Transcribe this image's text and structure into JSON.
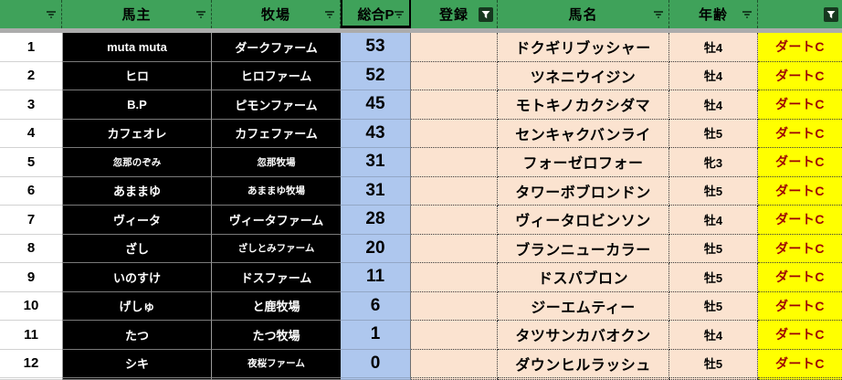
{
  "table": {
    "columns": [
      {
        "key": "rank",
        "label": "",
        "filter": "dropdown"
      },
      {
        "key": "owner",
        "label": "馬主",
        "filter": "dropdown"
      },
      {
        "key": "farm",
        "label": "牧場",
        "filter": "dropdown"
      },
      {
        "key": "points",
        "label": "総合P",
        "filter": "dropdown"
      },
      {
        "key": "entry",
        "label": "登録",
        "filter": "funnel"
      },
      {
        "key": "horse",
        "label": "馬名",
        "filter": "dropdown"
      },
      {
        "key": "age",
        "label": "年齢",
        "filter": "dropdown"
      },
      {
        "key": "surface",
        "label": "",
        "filter": "funnel"
      }
    ],
    "rows": [
      {
        "rank": "1",
        "owner": "muta muta",
        "farm": "ダークファーム",
        "points": "53",
        "entry": "",
        "horse": "ドクギリブッシャー",
        "age": "牡4",
        "surface": "ダートC",
        "owner_small": false,
        "farm_small": false
      },
      {
        "rank": "2",
        "owner": "ヒロ",
        "farm": "ヒロファーム",
        "points": "52",
        "entry": "",
        "horse": "ツネニウイジン",
        "age": "牡4",
        "surface": "ダートC",
        "owner_small": false,
        "farm_small": false
      },
      {
        "rank": "3",
        "owner": "B.P",
        "farm": "ピモンファーム",
        "points": "45",
        "entry": "",
        "horse": "モトキノカクシダマ",
        "age": "牡4",
        "surface": "ダートC",
        "owner_small": false,
        "farm_small": false
      },
      {
        "rank": "4",
        "owner": "カフェオレ",
        "farm": "カフェファーム",
        "points": "43",
        "entry": "",
        "horse": "センキャクバンライ",
        "age": "牡5",
        "surface": "ダートC",
        "owner_small": false,
        "farm_small": false
      },
      {
        "rank": "5",
        "owner": "忽那のぞみ",
        "farm": "忽那牧場",
        "points": "31",
        "entry": "",
        "horse": "フォーゼロフォー",
        "age": "牝3",
        "surface": "ダートC",
        "owner_small": true,
        "farm_small": true
      },
      {
        "rank": "6",
        "owner": "あままゆ",
        "farm": "あままゆ牧場",
        "points": "31",
        "entry": "",
        "horse": "タワーボブロンドン",
        "age": "牡5",
        "surface": "ダートC",
        "owner_small": false,
        "farm_small": true
      },
      {
        "rank": "7",
        "owner": "ヴィータ",
        "farm": "ヴィータファーム",
        "points": "28",
        "entry": "",
        "horse": "ヴィータロビンソン",
        "age": "牡4",
        "surface": "ダートC",
        "owner_small": false,
        "farm_small": false
      },
      {
        "rank": "8",
        "owner": "ざし",
        "farm": "ざしとみファーム",
        "points": "20",
        "entry": "",
        "horse": "ブランニューカラー",
        "age": "牡5",
        "surface": "ダートC",
        "owner_small": false,
        "farm_small": true
      },
      {
        "rank": "9",
        "owner": "いのすけ",
        "farm": "ドスファーム",
        "points": "11",
        "entry": "",
        "horse": "ドスパブロン",
        "age": "牡5",
        "surface": "ダートC",
        "owner_small": false,
        "farm_small": false
      },
      {
        "rank": "10",
        "owner": "げしゅ",
        "farm": "と鹿牧場",
        "points": "6",
        "entry": "",
        "horse": "ジーエムティー",
        "age": "牡5",
        "surface": "ダートC",
        "owner_small": false,
        "farm_small": false
      },
      {
        "rank": "11",
        "owner": "たつ",
        "farm": "たつ牧場",
        "points": "1",
        "entry": "",
        "horse": "タツサンカバオクン",
        "age": "牡4",
        "surface": "ダートC",
        "owner_small": false,
        "farm_small": false
      },
      {
        "rank": "12",
        "owner": "シキ",
        "farm": "夜桜ファーム",
        "points": "0",
        "entry": "",
        "horse": "ダウンヒルラッシュ",
        "age": "牡5",
        "surface": "ダートC",
        "owner_small": false,
        "farm_small": true
      }
    ]
  },
  "colors": {
    "header_green": "#3FA25A",
    "points_blue": "#AEC7EE",
    "peach": "#FBE3D0",
    "yellow": "#FFFF00",
    "surface_text": "#9C0006",
    "black_cell": "#000000",
    "band_gray": "#ACACAC"
  }
}
